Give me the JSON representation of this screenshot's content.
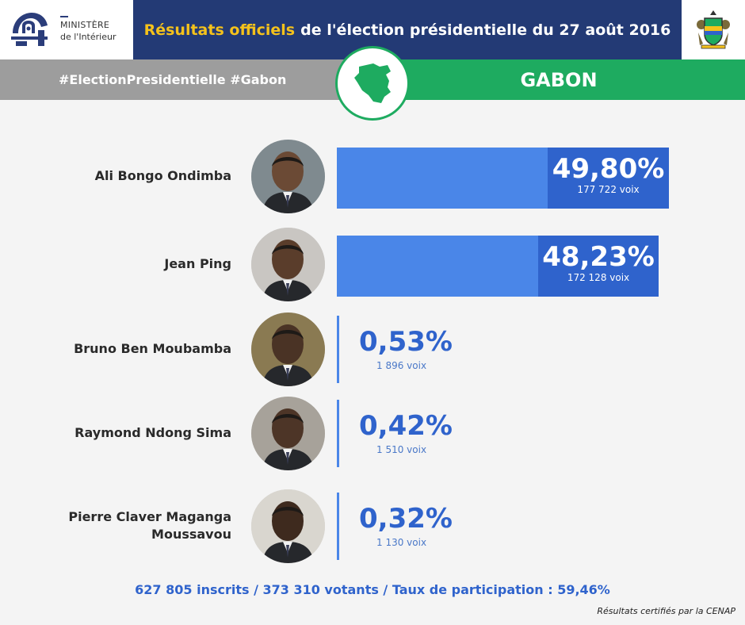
{
  "header": {
    "ministry_line1": "MINISTÈRE",
    "ministry_line2": "de l'Intérieur",
    "title_highlight": "Résultats officiels",
    "title_rest": "de l'élection présidentielle du 27 août 2016"
  },
  "band": {
    "hashtags": "#ElectionPresidentielle #Gabon",
    "country": "GABON"
  },
  "colors": {
    "header_blue": "#233a75",
    "title_accent": "#f5c21b",
    "green": "#1eab60",
    "grey": "#9d9d9d",
    "bar_light": "#4a86e8",
    "bar_dark": "#2f63cc"
  },
  "chart_data": {
    "type": "bar",
    "orientation": "horizontal",
    "categories": [
      "Ali Bongo Ondimba",
      "Jean Ping",
      "Bruno Ben Moubamba",
      "Raymond Ndong Sima",
      "Pierre Claver Maganga Moussavou"
    ],
    "values": [
      49.8,
      48.23,
      0.53,
      0.42,
      0.32
    ],
    "value_labels": [
      "49,80%",
      "48,23%",
      "0,53%",
      "0,42%",
      "0,32%"
    ],
    "votes": [
      177722,
      172128,
      1896,
      1510,
      1130
    ],
    "vote_labels": [
      "177 722 voix",
      "172 128 voix",
      "1 896 voix",
      "1 510 voix",
      "1 130 voix"
    ],
    "title": "",
    "xlabel": "",
    "ylabel": "",
    "xlim": [
      0,
      50
    ]
  },
  "footer": {
    "stats": "627 805 inscrits / 373 310 votants / Taux de participation : 59,46%",
    "certified": "Résultats certifiés par la CENAP"
  }
}
